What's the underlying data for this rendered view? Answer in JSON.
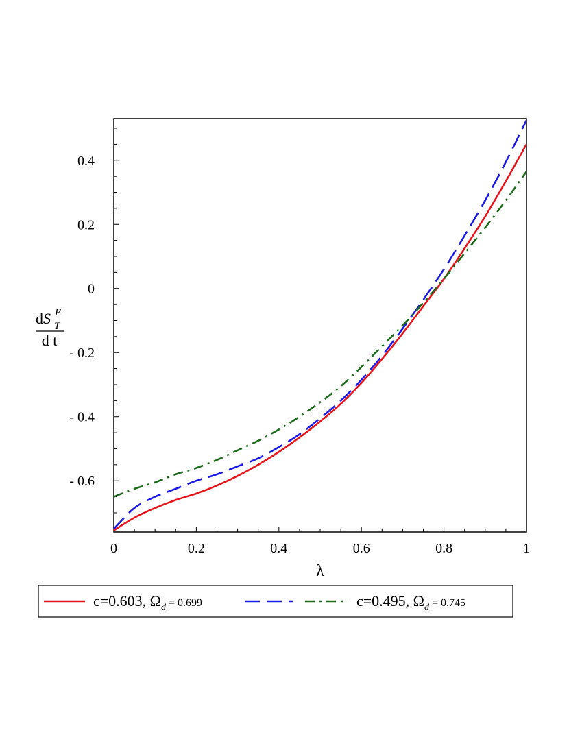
{
  "chart_data": {
    "type": "line",
    "xlabel": "λ",
    "ylabel": {
      "prefix": "d",
      "symbol": "S",
      "superscript": "E",
      "subscript": "T",
      "denominator": "d t"
    },
    "xlim": [
      0,
      1
    ],
    "ylim": [
      -0.76,
      0.53
    ],
    "x_ticks": [
      0,
      0.2,
      0.4,
      0.6,
      0.8,
      1
    ],
    "x_tick_labels": [
      "0",
      "0.2",
      "0.4",
      "0.6",
      "0.8",
      "1"
    ],
    "y_ticks": [
      0.4,
      0.2,
      0,
      -0.2,
      -0.4,
      -0.6
    ],
    "y_tick_labels": [
      "0.4",
      "0.2",
      "0",
      "- 0.2",
      "- 0.4",
      "- 0.6"
    ],
    "grid": false,
    "legend_position": "bottom",
    "series": [
      {
        "name": "c=0.603, Ω_d = 0.699",
        "color": "#e8141c",
        "style": "solid",
        "x": [
          0,
          0.05,
          0.1,
          0.15,
          0.2,
          0.25,
          0.3,
          0.35,
          0.4,
          0.45,
          0.5,
          0.55,
          0.6,
          0.65,
          0.7,
          0.75,
          0.8,
          0.85,
          0.9,
          0.95,
          1.0
        ],
        "y": [
          -0.755,
          -0.715,
          -0.685,
          -0.66,
          -0.64,
          -0.615,
          -0.585,
          -0.55,
          -0.51,
          -0.465,
          -0.415,
          -0.36,
          -0.295,
          -0.22,
          -0.14,
          -0.055,
          0.03,
          0.125,
          0.225,
          0.335,
          0.45
        ]
      },
      {
        "name": "",
        "color": "#1a1ae6",
        "style": "dashed",
        "x": [
          0,
          0.05,
          0.1,
          0.15,
          0.2,
          0.25,
          0.3,
          0.35,
          0.4,
          0.45,
          0.5,
          0.55,
          0.6,
          0.65,
          0.7,
          0.75,
          0.8,
          0.85,
          0.9,
          0.95,
          1.0
        ],
        "y": [
          -0.75,
          -0.685,
          -0.65,
          -0.625,
          -0.6,
          -0.58,
          -0.555,
          -0.53,
          -0.495,
          -0.455,
          -0.405,
          -0.35,
          -0.285,
          -0.21,
          -0.125,
          -0.035,
          0.06,
          0.165,
          0.275,
          0.395,
          0.525
        ]
      },
      {
        "name": "c=0.495, Ω_d = 0.745",
        "color": "#1b6b1b",
        "style": "dashdot",
        "x": [
          0,
          0.05,
          0.1,
          0.15,
          0.2,
          0.25,
          0.3,
          0.35,
          0.4,
          0.45,
          0.5,
          0.55,
          0.6,
          0.65,
          0.7,
          0.75,
          0.8,
          0.85,
          0.9,
          0.95,
          1.0
        ],
        "y": [
          -0.65,
          -0.625,
          -0.605,
          -0.58,
          -0.56,
          -0.535,
          -0.505,
          -0.475,
          -0.44,
          -0.4,
          -0.355,
          -0.305,
          -0.245,
          -0.18,
          -0.115,
          -0.045,
          0.03,
          0.11,
          0.19,
          0.275,
          0.365
        ]
      }
    ],
    "legend": [
      {
        "label": "c=0.603, Ω",
        "sub": "d",
        "suffix": " = 0.699",
        "color": "#e8141c",
        "style": "solid"
      },
      {
        "label": "",
        "sub": "",
        "suffix": "",
        "color": "#1a1ae6",
        "style": "dashed"
      },
      {
        "label": "c=0.495, Ω",
        "sub": "d",
        "suffix": " = 0.745",
        "color": "#1b6b1b",
        "style": "dashdot"
      }
    ]
  }
}
